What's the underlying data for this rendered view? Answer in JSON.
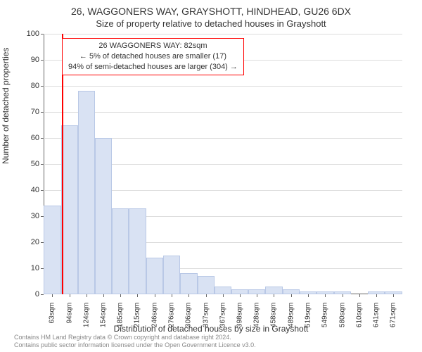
{
  "header": {
    "main": "26, WAGGONERS WAY, GRAYSHOTT, HINDHEAD, GU26 6DX",
    "sub": "Size of property relative to detached houses in Grayshott"
  },
  "chart": {
    "type": "histogram",
    "background_color": "#ffffff",
    "grid_color": "#dddddd",
    "axis_color": "#666666",
    "bar_fill": "#d9e2f3",
    "bar_stroke": "#b9c8e6",
    "bar_width_ratio": 1.0,
    "marker_color": "#ff0000",
    "ylim": [
      0,
      100
    ],
    "yticks": [
      0,
      10,
      20,
      30,
      40,
      50,
      60,
      70,
      80,
      90,
      100
    ],
    "ylabel": "Number of detached properties",
    "xlabel": "Distribution of detached houses by size in Grayshott",
    "xlim": [
      48,
      687
    ],
    "xticks": [
      63,
      94,
      124,
      154,
      185,
      215,
      246,
      276,
      306,
      337,
      367,
      398,
      428,
      458,
      489,
      519,
      549,
      580,
      610,
      641,
      671
    ],
    "xtick_unit": "sqm",
    "categories_start": [
      48,
      79,
      109,
      139,
      170,
      200,
      231,
      261,
      291,
      322,
      352,
      383,
      413,
      443,
      474,
      504,
      534,
      565,
      626,
      656
    ],
    "categories_end": [
      79,
      109,
      139,
      170,
      200,
      231,
      261,
      291,
      322,
      352,
      383,
      413,
      443,
      474,
      504,
      534,
      565,
      595,
      656,
      687
    ],
    "values": [
      34,
      65,
      78,
      60,
      33,
      33,
      14,
      15,
      8,
      7,
      3,
      2,
      2,
      3,
      2,
      1,
      1,
      1,
      1,
      1
    ],
    "marker_value": 82,
    "title_fontsize": 14,
    "label_fontsize": 12,
    "tick_fontsize": 11
  },
  "annotation": {
    "border_color": "#ff0000",
    "line1": "26 WAGGONERS WAY: 82sqm",
    "line2": "← 5% of detached houses are smaller (17)",
    "line3": "94% of semi-detached houses are larger (304) →"
  },
  "attribution": {
    "line1": "Contains HM Land Registry data © Crown copyright and database right 2024.",
    "line2": "Contains public sector information licensed under the Open Government Licence v3.0."
  }
}
